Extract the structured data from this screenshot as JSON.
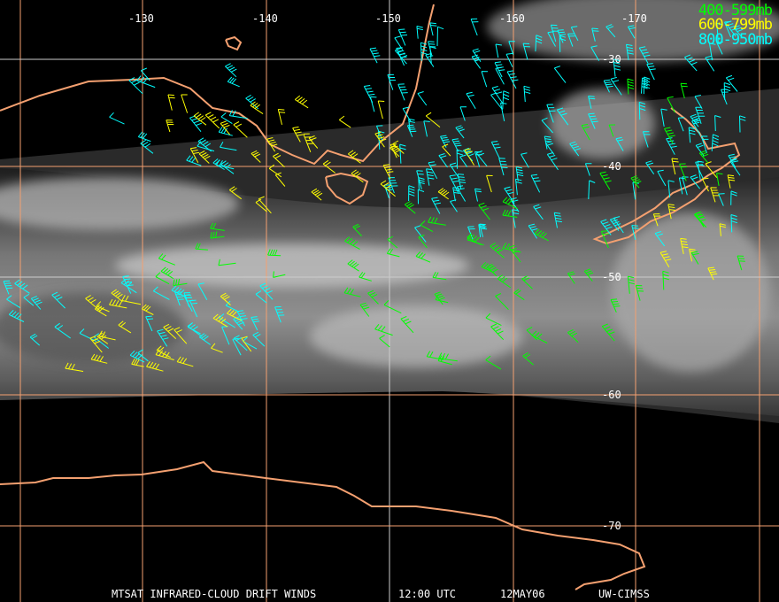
{
  "map": {
    "projection": "mercator",
    "lon_labels": [
      "-130",
      "-140",
      "-150",
      "-160",
      "-170"
    ],
    "lat_labels": [
      "-30",
      "-40",
      "-50",
      "-60",
      "-70"
    ],
    "colors": {
      "grid": "#f4a070",
      "coast": "#f4a070",
      "layer_400_599": "#00ff00",
      "layer_600_799": "#ffff00",
      "layer_800_950": "#00ffff"
    }
  },
  "legend": [
    {
      "label": "400-599mb",
      "color": "#00ff00"
    },
    {
      "label": "600-799mb",
      "color": "#ffff00"
    },
    {
      "label": "800-950mb",
      "color": "#00ffff"
    }
  ],
  "footer": {
    "product": "MTSAT INFRARED-CLOUD DRIFT WINDS",
    "time": "12:00 UTC",
    "date": "12MAY06",
    "source": "UW-CIMSS"
  }
}
